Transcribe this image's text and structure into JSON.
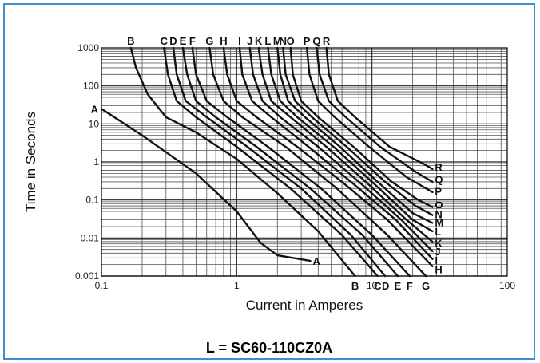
{
  "caption": "L = SC60-110CZ0A",
  "chart_data": {
    "type": "line",
    "title": "",
    "xlabel": "Current in Amperes",
    "ylabel": "Time in Seconds",
    "x_scale": "log",
    "y_scale": "log",
    "xlim": [
      0.1,
      100
    ],
    "ylim": [
      0.001,
      1000
    ],
    "x_tick_labels": [
      "0.1",
      "1",
      "10",
      "100"
    ],
    "y_tick_labels": [
      "0.001",
      "0.01",
      "0.1",
      "1",
      "10",
      "100",
      "1000"
    ],
    "grid": true,
    "top_labels": [
      "B",
      "C",
      "D",
      "E",
      "F",
      "G",
      "H",
      "I",
      "J",
      "K",
      "L",
      "M",
      "N",
      "O",
      "P",
      "Q",
      "R"
    ],
    "bottom_labels": [
      "B",
      "C",
      "D",
      "E",
      "F",
      "G"
    ],
    "right_labels": [
      "R",
      "Q",
      "P",
      "O",
      "N",
      "M",
      "L",
      "K",
      "J",
      "I",
      "H"
    ],
    "left_labels": [
      "A"
    ],
    "inline_labels": [
      "A"
    ],
    "series": [
      {
        "name": "A",
        "x": [
          0.1,
          0.2,
          0.5,
          1.0,
          1.5,
          2.0,
          3.5
        ],
        "y": [
          25,
          5,
          0.5,
          0.05,
          0.0075,
          0.0035,
          0.0025
        ]
      },
      {
        "name": "B",
        "x": [
          0.165,
          0.18,
          0.22,
          0.3,
          0.5,
          1.0,
          2.0,
          4.0,
          7.5
        ],
        "y": [
          1000,
          300,
          60,
          15,
          6,
          1.2,
          0.15,
          0.015,
          0.001
        ]
      },
      {
        "name": "C",
        "x": [
          0.29,
          0.31,
          0.36,
          0.5,
          1.0,
          2.5,
          6.0,
          11.0
        ],
        "y": [
          1000,
          200,
          40,
          15,
          2.5,
          0.2,
          0.012,
          0.001
        ]
      },
      {
        "name": "D",
        "x": [
          0.34,
          0.36,
          0.42,
          0.6,
          1.2,
          3.0,
          7.0,
          12.5
        ],
        "y": [
          1000,
          200,
          40,
          15,
          2.5,
          0.2,
          0.012,
          0.001
        ]
      },
      {
        "name": "E",
        "x": [
          0.4,
          0.43,
          0.5,
          0.7,
          1.4,
          3.5,
          8.5,
          15.5
        ],
        "y": [
          1000,
          200,
          40,
          15,
          2.5,
          0.2,
          0.012,
          0.001
        ]
      },
      {
        "name": "F",
        "x": [
          0.47,
          0.5,
          0.6,
          0.85,
          1.7,
          4.2,
          10.0,
          19.0
        ],
        "y": [
          1000,
          200,
          40,
          15,
          2.5,
          0.2,
          0.012,
          0.001
        ]
      },
      {
        "name": "G",
        "x": [
          0.63,
          0.67,
          0.8,
          1.1,
          2.3,
          5.5,
          13.0,
          25.0
        ],
        "y": [
          1000,
          200,
          40,
          15,
          2.5,
          0.2,
          0.012,
          0.001
        ]
      },
      {
        "name": "H",
        "x": [
          0.8,
          0.85,
          1.0,
          1.4,
          2.8,
          6.0,
          13.0,
          28.0
        ],
        "y": [
          1000,
          200,
          40,
          15,
          2.5,
          0.3,
          0.03,
          0.0018
        ]
      },
      {
        "name": "I",
        "x": [
          1.05,
          1.1,
          1.3,
          1.8,
          3.4,
          7.0,
          15.0,
          28.0
        ],
        "y": [
          1000,
          200,
          40,
          15,
          2.5,
          0.3,
          0.03,
          0.0028
        ]
      },
      {
        "name": "J",
        "x": [
          1.25,
          1.32,
          1.55,
          2.1,
          4.0,
          8.0,
          16.5,
          28.0
        ],
        "y": [
          1000,
          200,
          40,
          15,
          2.5,
          0.3,
          0.03,
          0.0045
        ]
      },
      {
        "name": "K",
        "x": [
          1.45,
          1.55,
          1.8,
          2.5,
          4.6,
          9.0,
          18.0,
          28.0
        ],
        "y": [
          1000,
          200,
          40,
          15,
          2.5,
          0.3,
          0.03,
          0.008
        ]
      },
      {
        "name": "L",
        "x": [
          1.7,
          1.8,
          2.1,
          2.8,
          5.2,
          10.0,
          20.0,
          28.0
        ],
        "y": [
          1000,
          200,
          40,
          15,
          2.5,
          0.3,
          0.03,
          0.015
        ]
      },
      {
        "name": "M",
        "x": [
          2.0,
          2.1,
          2.4,
          3.2,
          5.8,
          11.0,
          20.0,
          28.0
        ],
        "y": [
          1000,
          200,
          40,
          15,
          2.5,
          0.3,
          0.045,
          0.025
        ]
      },
      {
        "name": "N",
        "x": [
          2.2,
          2.3,
          2.7,
          3.6,
          6.5,
          12.5,
          21.0,
          28.0
        ],
        "y": [
          1000,
          200,
          40,
          15,
          2.5,
          0.3,
          0.07,
          0.04
        ]
      },
      {
        "name": "O",
        "x": [
          2.5,
          2.6,
          3.0,
          4.0,
          7.3,
          14.0,
          22.0,
          28.0
        ],
        "y": [
          1000,
          200,
          40,
          15,
          2.5,
          0.3,
          0.1,
          0.065
        ]
      },
      {
        "name": "P",
        "x": [
          3.3,
          3.45,
          4.0,
          5.3,
          9.5,
          18.0,
          28.0
        ],
        "y": [
          1000,
          200,
          40,
          15,
          2.5,
          0.4,
          0.16
        ]
      },
      {
        "name": "Q",
        "x": [
          3.9,
          4.1,
          4.8,
          6.4,
          11.5,
          21.0,
          28.0
        ],
        "y": [
          1000,
          200,
          40,
          15,
          2.5,
          0.55,
          0.3
        ]
      },
      {
        "name": "R",
        "x": [
          4.6,
          4.8,
          5.6,
          7.5,
          13.5,
          24.0,
          28.0
        ],
        "y": [
          1000,
          200,
          40,
          15,
          2.5,
          0.9,
          0.65
        ]
      }
    ]
  }
}
